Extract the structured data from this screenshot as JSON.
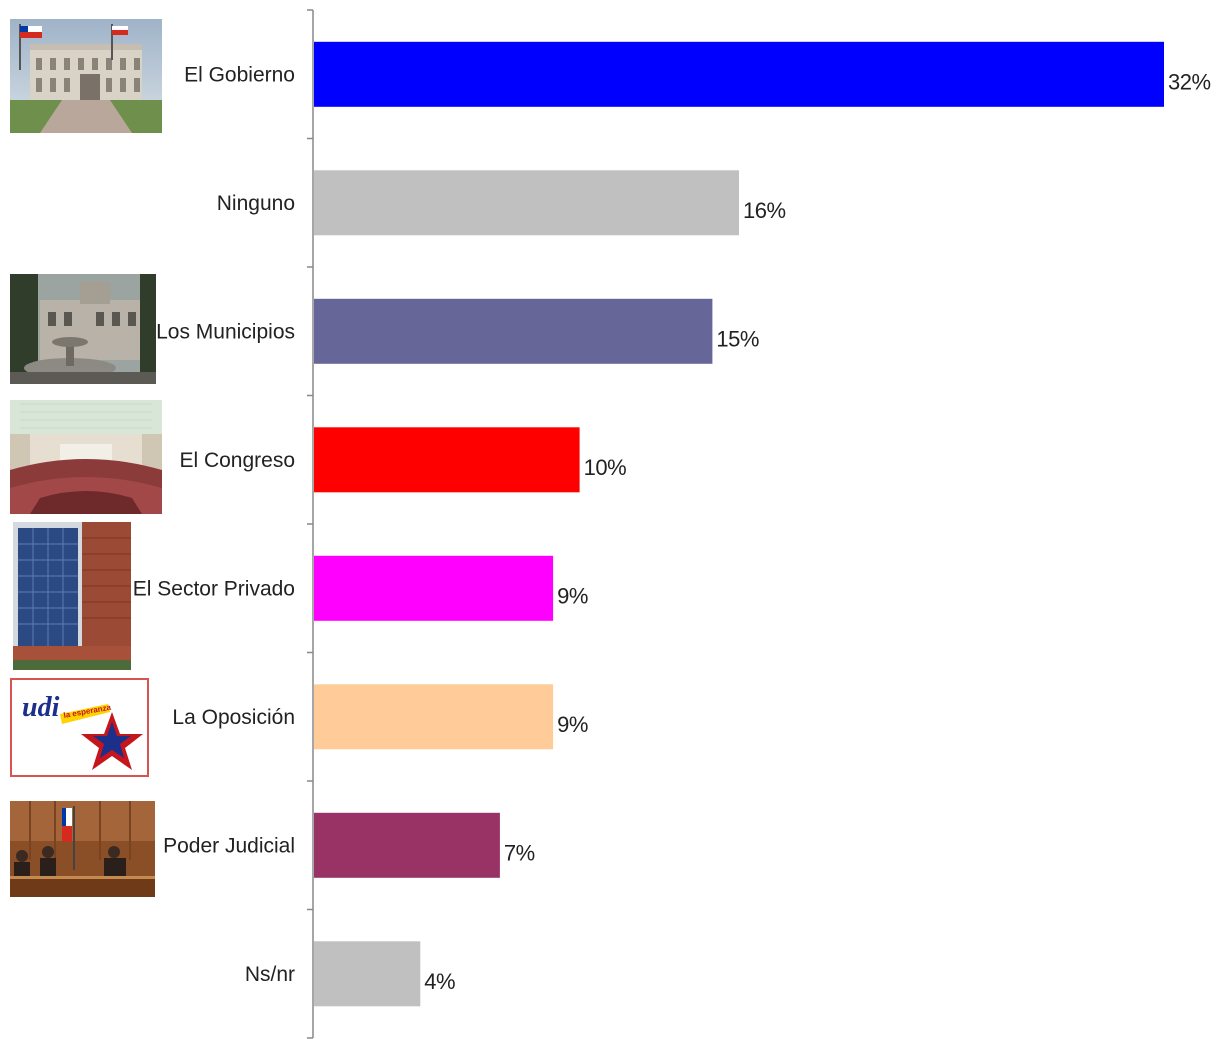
{
  "chart_data": {
    "type": "bar",
    "orientation": "horizontal",
    "categories": [
      "El Gobierno",
      "Ninguno",
      "Los Municipios",
      "El Congreso",
      "El Sector Privado",
      "La Oposición",
      "Poder Judicial",
      "Ns/nr"
    ],
    "values": [
      32,
      16,
      15,
      10,
      9,
      9,
      7,
      4
    ],
    "value_labels": [
      "32%",
      "16%",
      "15%",
      "10%",
      "9%",
      "9%",
      "7%",
      "4%"
    ],
    "unit": "%",
    "bar_colors": [
      "#0000ff",
      "#c0c0c0",
      "#666699",
      "#ff0000",
      "#ff00ff",
      "#ffcc99",
      "#993366",
      "#c0c0c0"
    ],
    "category_images": [
      "government-palace-photo",
      "",
      "municipal-building-photo",
      "congress-chamber-photo",
      "office-tower-photo",
      "udi-party-logo",
      "court-hearing-photo",
      ""
    ],
    "xlim": [
      0,
      32
    ],
    "grid": false,
    "legend": "none"
  }
}
